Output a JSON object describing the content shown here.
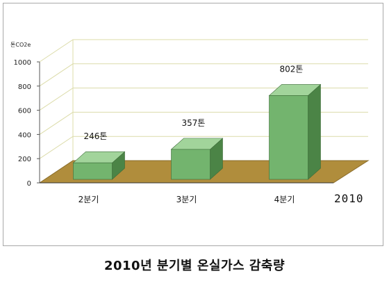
{
  "caption": "2010년 분기별 온실가스 감축량",
  "chart_data": {
    "type": "bar",
    "ylabel": "톤CO2e",
    "xlabel": "",
    "year_label": "2010",
    "categories": [
      "2분기",
      "3분기",
      "4분기"
    ],
    "values": [
      246,
      357,
      802
    ],
    "data_labels": [
      "246톤",
      "357톤",
      "802톤"
    ],
    "yticks": [
      "0",
      "200",
      "400",
      "600",
      "800",
      "1000"
    ],
    "ylim": [
      0,
      1000
    ],
    "grid": true,
    "legend": "none",
    "colors": {
      "bar_front": "#73b46e",
      "bar_top": "#a2d49b",
      "bar_side": "#4b8446",
      "floor": "#b08d3c",
      "floor_edge": "#8a6c2b",
      "grid": "#dcdcaa",
      "wall": "#ffffff"
    }
  }
}
